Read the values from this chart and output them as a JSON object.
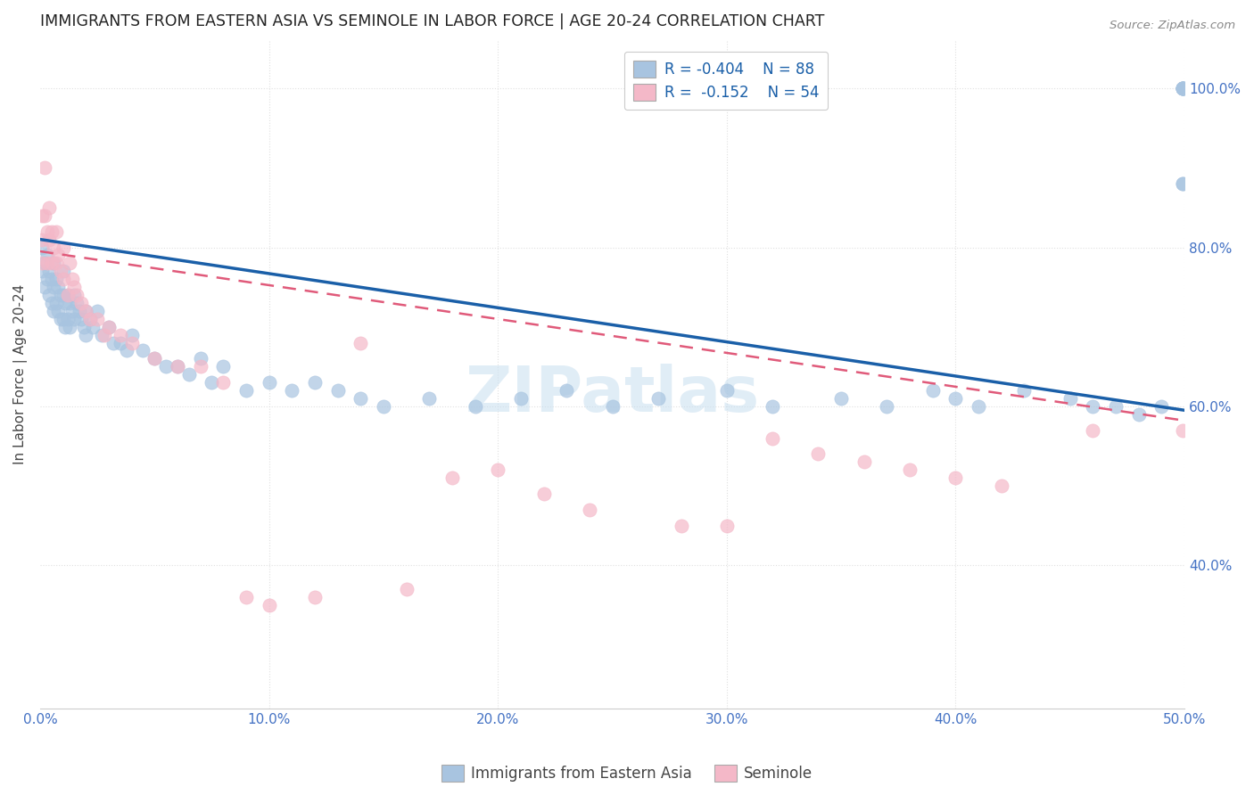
{
  "title": "IMMIGRANTS FROM EASTERN ASIA VS SEMINOLE IN LABOR FORCE | AGE 20-24 CORRELATION CHART",
  "source": "Source: ZipAtlas.com",
  "ylabel": "In Labor Force | Age 20-24",
  "xlim": [
    0.0,
    0.5
  ],
  "ylim": [
    0.22,
    1.06
  ],
  "legend_blue_label": "Immigrants from Eastern Asia",
  "legend_pink_label": "Seminole",
  "legend_blue_R": "R = -0.404",
  "legend_blue_N": "N = 88",
  "legend_pink_R": "R =  -0.152",
  "legend_pink_N": "N = 54",
  "blue_color": "#a8c4e0",
  "pink_color": "#f4b8c8",
  "blue_line_color": "#1a5fa8",
  "pink_line_color": "#e05a7a",
  "background_color": "#ffffff",
  "grid_color": "#e0e0e0",
  "title_color": "#222222",
  "axis_label_color": "#4472c4",
  "watermark": "ZIPatlas",
  "blue_scatter_x": [
    0.001,
    0.001,
    0.002,
    0.002,
    0.003,
    0.003,
    0.004,
    0.004,
    0.005,
    0.005,
    0.006,
    0.006,
    0.006,
    0.007,
    0.007,
    0.008,
    0.008,
    0.009,
    0.009,
    0.01,
    0.01,
    0.01,
    0.011,
    0.011,
    0.012,
    0.012,
    0.013,
    0.013,
    0.014,
    0.015,
    0.015,
    0.016,
    0.017,
    0.018,
    0.019,
    0.02,
    0.02,
    0.022,
    0.023,
    0.025,
    0.027,
    0.03,
    0.032,
    0.035,
    0.038,
    0.04,
    0.045,
    0.05,
    0.055,
    0.06,
    0.065,
    0.07,
    0.075,
    0.08,
    0.09,
    0.1,
    0.11,
    0.12,
    0.13,
    0.14,
    0.15,
    0.17,
    0.19,
    0.21,
    0.23,
    0.25,
    0.27,
    0.3,
    0.32,
    0.35,
    0.37,
    0.39,
    0.4,
    0.41,
    0.43,
    0.45,
    0.46,
    0.47,
    0.48,
    0.49,
    0.499,
    0.499,
    0.499,
    0.499,
    0.499,
    0.499,
    0.499,
    0.499
  ],
  "blue_scatter_y": [
    0.8,
    0.77,
    0.78,
    0.75,
    0.79,
    0.76,
    0.77,
    0.74,
    0.76,
    0.73,
    0.78,
    0.75,
    0.72,
    0.76,
    0.73,
    0.75,
    0.72,
    0.74,
    0.71,
    0.77,
    0.74,
    0.71,
    0.73,
    0.7,
    0.74,
    0.71,
    0.73,
    0.7,
    0.72,
    0.74,
    0.71,
    0.73,
    0.72,
    0.71,
    0.7,
    0.72,
    0.69,
    0.71,
    0.7,
    0.72,
    0.69,
    0.7,
    0.68,
    0.68,
    0.67,
    0.69,
    0.67,
    0.66,
    0.65,
    0.65,
    0.64,
    0.66,
    0.63,
    0.65,
    0.62,
    0.63,
    0.62,
    0.63,
    0.62,
    0.61,
    0.6,
    0.61,
    0.6,
    0.61,
    0.62,
    0.6,
    0.61,
    0.62,
    0.6,
    0.61,
    0.6,
    0.62,
    0.61,
    0.6,
    0.62,
    0.61,
    0.6,
    0.6,
    0.59,
    0.6,
    1.0,
    1.0,
    1.0,
    1.0,
    1.0,
    1.0,
    0.88,
    0.88
  ],
  "pink_scatter_x": [
    0.001,
    0.001,
    0.001,
    0.002,
    0.002,
    0.003,
    0.003,
    0.004,
    0.004,
    0.005,
    0.005,
    0.006,
    0.007,
    0.007,
    0.008,
    0.009,
    0.01,
    0.01,
    0.012,
    0.013,
    0.014,
    0.015,
    0.016,
    0.018,
    0.02,
    0.022,
    0.025,
    0.028,
    0.03,
    0.035,
    0.04,
    0.05,
    0.06,
    0.07,
    0.08,
    0.09,
    0.1,
    0.12,
    0.14,
    0.16,
    0.18,
    0.2,
    0.22,
    0.24,
    0.28,
    0.3,
    0.32,
    0.34,
    0.36,
    0.38,
    0.4,
    0.42,
    0.46,
    0.499
  ],
  "pink_scatter_y": [
    0.84,
    0.81,
    0.78,
    0.9,
    0.84,
    0.82,
    0.78,
    0.85,
    0.81,
    0.82,
    0.78,
    0.8,
    0.82,
    0.78,
    0.79,
    0.77,
    0.8,
    0.76,
    0.74,
    0.78,
    0.76,
    0.75,
    0.74,
    0.73,
    0.72,
    0.71,
    0.71,
    0.69,
    0.7,
    0.69,
    0.68,
    0.66,
    0.65,
    0.65,
    0.63,
    0.36,
    0.35,
    0.36,
    0.68,
    0.37,
    0.51,
    0.52,
    0.49,
    0.47,
    0.45,
    0.45,
    0.56,
    0.54,
    0.53,
    0.52,
    0.51,
    0.5,
    0.57,
    0.57
  ],
  "blue_trend_x": [
    0.0,
    0.5
  ],
  "blue_trend_y": [
    0.81,
    0.595
  ],
  "pink_trend_x": [
    0.0,
    0.5
  ],
  "pink_trend_y": [
    0.795,
    0.582
  ],
  "xticks": [
    0.0,
    0.1,
    0.2,
    0.3,
    0.4,
    0.5
  ],
  "xtick_labels": [
    "0.0%",
    "10.0%",
    "20.0%",
    "30.0%",
    "40.0%",
    "50.0%"
  ],
  "yticks_right": [
    0.4,
    0.6,
    0.8,
    1.0
  ],
  "ytick_right_labels": [
    "40.0%",
    "60.0%",
    "80.0%",
    "100.0%"
  ],
  "grid_yticks": [
    0.4,
    0.6,
    0.8,
    1.0
  ],
  "grid_xticks": [
    0.1,
    0.2,
    0.3,
    0.4,
    0.5
  ]
}
